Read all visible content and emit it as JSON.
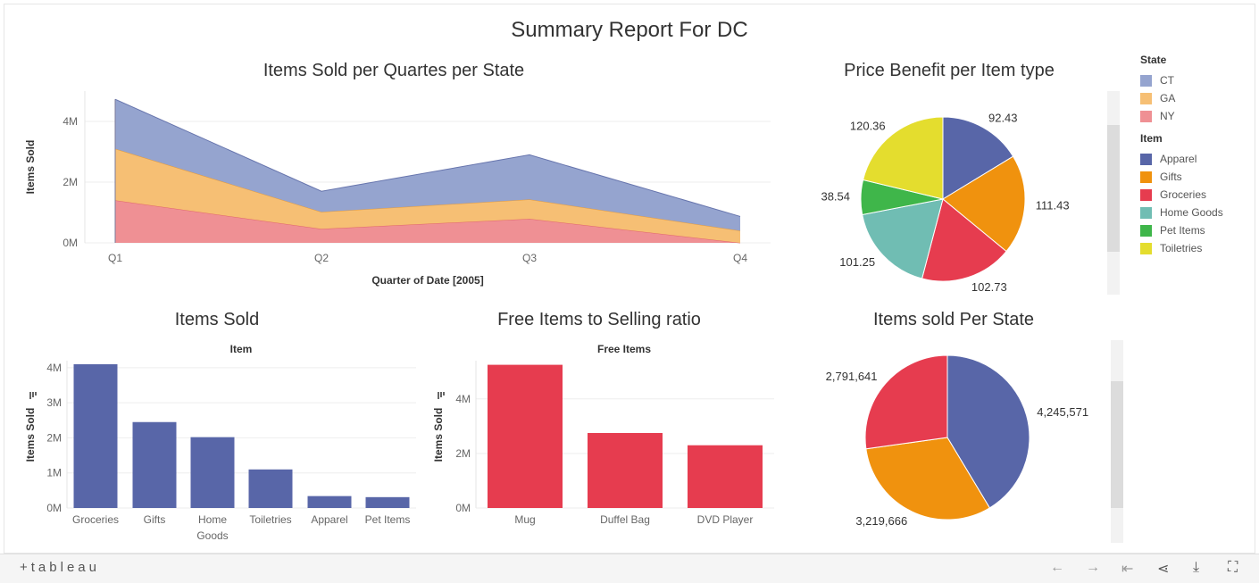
{
  "dashboard": {
    "title": "Summary Report For DC"
  },
  "legend": {
    "state_title": "State",
    "states": [
      {
        "label": "CT",
        "color": "#95a4cf"
      },
      {
        "label": "GA",
        "color": "#f6bf74"
      },
      {
        "label": "NY",
        "color": "#ef9094"
      }
    ],
    "item_title": "Item",
    "items": [
      {
        "label": "Apparel",
        "color": "#5866a8"
      },
      {
        "label": "Gifts",
        "color": "#f0920e"
      },
      {
        "label": "Groceries",
        "color": "#e63c4f"
      },
      {
        "label": "Home Goods",
        "color": "#70bdb3"
      },
      {
        "label": "Pet Items",
        "color": "#3fb64a"
      },
      {
        "label": "Toiletries",
        "color": "#e4dd2e"
      }
    ]
  },
  "footer": {
    "logo": "+tableau"
  },
  "chart_data": [
    {
      "id": "area",
      "type": "area",
      "title": "Items Sold per Quartes per State",
      "xlabel": "Quarter of Date [2005]",
      "ylabel": "Items Sold",
      "categories": [
        "Q1",
        "Q2",
        "Q3",
        "Q4"
      ],
      "stacked": true,
      "ylim": [
        0,
        5000000
      ],
      "yticks": [
        {
          "v": 0,
          "label": "0M"
        },
        {
          "v": 2000000,
          "label": "2M"
        },
        {
          "v": 4000000,
          "label": "4M"
        }
      ],
      "series": [
        {
          "name": "NY",
          "color": "#ef9094",
          "values": [
            1400000,
            460000,
            790000,
            0
          ]
        },
        {
          "name": "GA",
          "color": "#f6bf74",
          "values": [
            1700000,
            560000,
            640000,
            400000
          ]
        },
        {
          "name": "CT",
          "color": "#95a4cf",
          "values": [
            1630000,
            680000,
            1470000,
            470000
          ]
        }
      ]
    },
    {
      "id": "pie1",
      "type": "pie",
      "title": "Price Benefit per Item type",
      "slices": [
        {
          "label": "Apparel",
          "value": 92.43,
          "text": "92.43",
          "color": "#5866a8"
        },
        {
          "label": "Gifts",
          "value": 111.43,
          "text": "111.43",
          "color": "#f0920e"
        },
        {
          "label": "Groceries",
          "value": 102.73,
          "text": "102.73",
          "color": "#e63c4f"
        },
        {
          "label": "Home Goods",
          "value": 101.25,
          "text": "101.25",
          "color": "#70bdb3"
        },
        {
          "label": "Pet Items",
          "value": 38.54,
          "text": "38.54",
          "color": "#3fb64a"
        },
        {
          "label": "Toiletries",
          "value": 120.36,
          "text": "120.36",
          "color": "#e4dd2e"
        }
      ]
    },
    {
      "id": "bar1",
      "type": "bar",
      "title": "Items Sold",
      "xlabel": "Item",
      "ylabel": "Items Sold",
      "color": "#5866a8",
      "ylim": [
        0,
        4200000
      ],
      "yticks": [
        {
          "v": 0,
          "label": "0M"
        },
        {
          "v": 1000000,
          "label": "1M"
        },
        {
          "v": 2000000,
          "label": "2M"
        },
        {
          "v": 3000000,
          "label": "3M"
        },
        {
          "v": 4000000,
          "label": "4M"
        }
      ],
      "categories": [
        [
          "Groceries"
        ],
        [
          "Gifts"
        ],
        [
          "Home",
          "Goods"
        ],
        [
          "Toiletries"
        ],
        [
          "Apparel"
        ],
        [
          "Pet Items"
        ]
      ],
      "values": [
        4100000,
        2450000,
        2020000,
        1100000,
        340000,
        310000
      ]
    },
    {
      "id": "bar2",
      "type": "bar",
      "title": "Free Items to Selling ratio",
      "xlabel": "Free Items",
      "ylabel": "Items Sold",
      "color": "#e63c4f",
      "ylim": [
        0,
        5400000
      ],
      "yticks": [
        {
          "v": 0,
          "label": "0M"
        },
        {
          "v": 2000000,
          "label": "2M"
        },
        {
          "v": 4000000,
          "label": "4M"
        }
      ],
      "categories": [
        [
          "Mug"
        ],
        [
          "Duffel Bag"
        ],
        [
          "DVD Player"
        ]
      ],
      "values": [
        5250000,
        2750000,
        2300000
      ]
    },
    {
      "id": "pie2",
      "type": "pie",
      "title": "Items sold Per State",
      "slices": [
        {
          "label": "CT",
          "value": 4245571,
          "text": "4,245,571",
          "color": "#5866a8"
        },
        {
          "label": "GA",
          "value": 3219666,
          "text": "3,219,666",
          "color": "#f0920e"
        },
        {
          "label": "NY",
          "value": 2791641,
          "text": "2,791,641",
          "color": "#e63c4f"
        }
      ]
    }
  ]
}
